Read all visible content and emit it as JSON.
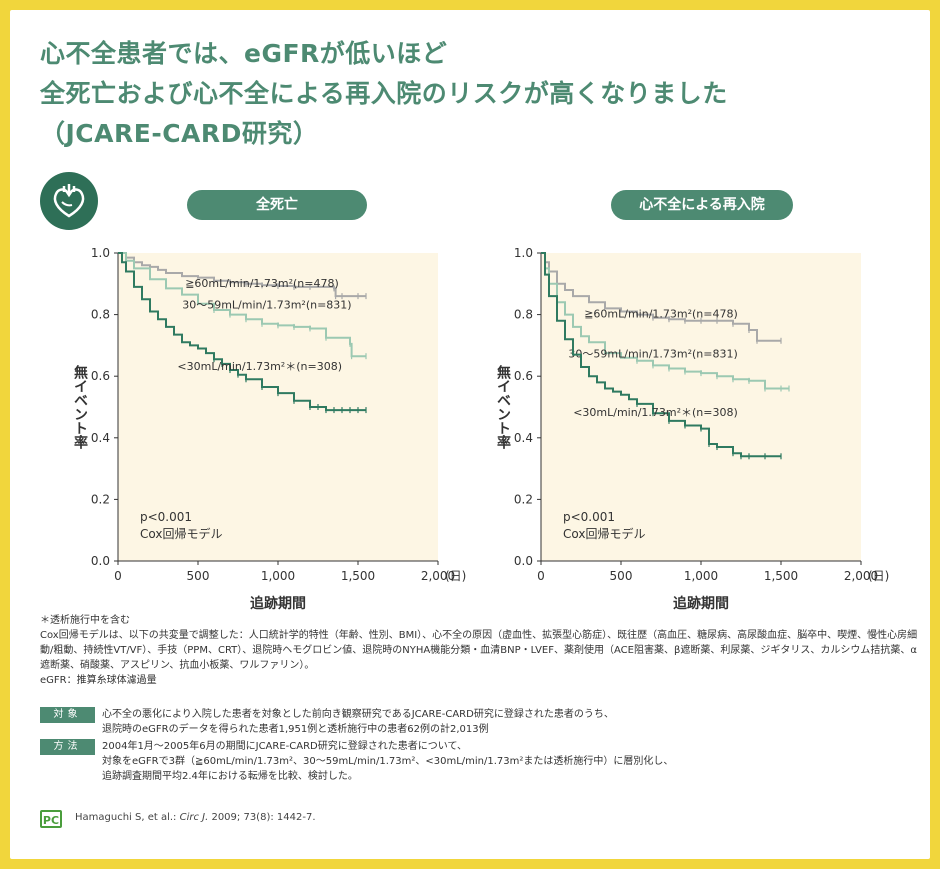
{
  "title": {
    "line1": "心不全患者では、eGFRが低いほど",
    "line2": "全死亡および心不全による再入院のリスクが高くなりました",
    "line3": "（JCARE-CARD研究）"
  },
  "chart_data": [
    {
      "type": "line",
      "title": "全死亡",
      "xlabel": "追跡期間",
      "x_unit": "(日)",
      "ylabel": "無イベント率",
      "xlim": [
        0,
        2000
      ],
      "ylim": [
        0,
        1.0
      ],
      "x_ticks": [
        "0",
        "500",
        "1,000",
        "1,500",
        "2,000"
      ],
      "y_ticks": [
        "0.0",
        "0.2",
        "0.4",
        "0.6",
        "0.8",
        "1.0"
      ],
      "annotation_lines": [
        "p<0.001",
        "Cox回帰モデル"
      ],
      "series": [
        {
          "name": "≧60mL/min/1.73m²(n=478)",
          "color": "#a9a9a9",
          "x": [
            0,
            50,
            100,
            150,
            200,
            250,
            300,
            400,
            500,
            600,
            700,
            800,
            900,
            1000,
            1100,
            1200,
            1350,
            1360,
            1400,
            1500,
            1550
          ],
          "y": [
            1.0,
            0.985,
            0.97,
            0.96,
            0.955,
            0.945,
            0.935,
            0.925,
            0.92,
            0.91,
            0.905,
            0.9,
            0.895,
            0.893,
            0.89,
            0.89,
            0.885,
            0.86,
            0.86,
            0.86,
            0.86
          ]
        },
        {
          "name": "30～59mL/min/1.73m²(n=831)",
          "color": "#9cc9b2",
          "x": [
            0,
            50,
            100,
            200,
            300,
            400,
            500,
            600,
            700,
            800,
            900,
            1000,
            1100,
            1200,
            1300,
            1450,
            1460,
            1550
          ],
          "y": [
            1.0,
            0.975,
            0.95,
            0.915,
            0.885,
            0.865,
            0.835,
            0.815,
            0.8,
            0.785,
            0.77,
            0.765,
            0.76,
            0.755,
            0.725,
            0.705,
            0.665,
            0.665
          ]
        },
        {
          "name": "<30mL/min/1.73m²＊(n=308)",
          "color": "#2f7a60",
          "x": [
            0,
            25,
            50,
            100,
            150,
            200,
            250,
            300,
            350,
            400,
            450,
            500,
            550,
            600,
            650,
            700,
            750,
            800,
            900,
            1000,
            1100,
            1200,
            1250,
            1300,
            1350,
            1400,
            1450,
            1500,
            1550
          ],
          "y": [
            1.0,
            0.97,
            0.94,
            0.89,
            0.85,
            0.81,
            0.785,
            0.76,
            0.735,
            0.71,
            0.7,
            0.69,
            0.675,
            0.655,
            0.64,
            0.62,
            0.605,
            0.59,
            0.565,
            0.545,
            0.52,
            0.5,
            0.5,
            0.49,
            0.49,
            0.49,
            0.49,
            0.49,
            0.49
          ]
        }
      ]
    },
    {
      "type": "line",
      "title": "心不全による再入院",
      "xlabel": "追跡期間",
      "x_unit": "(日)",
      "ylabel": "無イベント率",
      "xlim": [
        0,
        2000
      ],
      "ylim": [
        0,
        1.0
      ],
      "x_ticks": [
        "0",
        "500",
        "1,000",
        "1,500",
        "2,000"
      ],
      "y_ticks": [
        "0.0",
        "0.2",
        "0.4",
        "0.6",
        "0.8",
        "1.0"
      ],
      "annotation_lines": [
        "p<0.001",
        "Cox回帰モデル"
      ],
      "series": [
        {
          "name": "≧60mL/min/1.73m²(n=478)",
          "color": "#a9a9a9",
          "x": [
            0,
            25,
            50,
            100,
            150,
            200,
            300,
            400,
            500,
            600,
            700,
            800,
            900,
            1000,
            1100,
            1200,
            1300,
            1350,
            1500
          ],
          "y": [
            1.0,
            0.97,
            0.94,
            0.9,
            0.88,
            0.86,
            0.84,
            0.82,
            0.81,
            0.8,
            0.79,
            0.785,
            0.78,
            0.78,
            0.78,
            0.77,
            0.75,
            0.715,
            0.715
          ]
        },
        {
          "name": "30～59mL/min/1.73m²(n=831)",
          "color": "#9cc9b2",
          "x": [
            0,
            25,
            50,
            100,
            150,
            200,
            250,
            300,
            400,
            500,
            600,
            700,
            800,
            900,
            1000,
            1100,
            1200,
            1300,
            1400,
            1500,
            1550
          ],
          "y": [
            1.0,
            0.95,
            0.9,
            0.84,
            0.8,
            0.76,
            0.73,
            0.71,
            0.675,
            0.66,
            0.65,
            0.635,
            0.625,
            0.615,
            0.61,
            0.6,
            0.59,
            0.585,
            0.56,
            0.56,
            0.56
          ]
        },
        {
          "name": "<30mL/min/1.73m²＊(n=308)",
          "color": "#2f7a60",
          "x": [
            0,
            25,
            50,
            100,
            150,
            200,
            250,
            300,
            350,
            400,
            450,
            500,
            550,
            600,
            700,
            800,
            900,
            1000,
            1050,
            1100,
            1200,
            1250,
            1300,
            1400,
            1500
          ],
          "y": [
            1.0,
            0.93,
            0.86,
            0.78,
            0.72,
            0.67,
            0.63,
            0.6,
            0.58,
            0.56,
            0.55,
            0.54,
            0.525,
            0.51,
            0.48,
            0.455,
            0.44,
            0.43,
            0.38,
            0.37,
            0.35,
            0.34,
            0.34,
            0.34,
            0.34
          ]
        }
      ]
    }
  ],
  "pills": {
    "left": "全死亡",
    "right": "心不全による再入院"
  },
  "notes": {
    "line1": "＊透析施行中を含む",
    "line2": "Cox回帰モデルは、以下の共変量で調整した：人口統計学的特性（年齢、性別、BMI）、心不全の原因（虚血性、拡張型心筋症）、既往歴（高血圧、糖尿病、高尿酸血症、脳卒中、喫煙、慢性心房細動/粗動、持続性VT/VF）、手技（PPM、CRT）、退院時ヘモグロビン値、退院時のNYHA機能分類・血清BNP・LVEF、薬剤使用（ACE阻害薬、β遮断薬、利尿薬、ジギタリス、カルシウム拮抗薬、α遮断薬、硝酸薬、アスピリン、抗血小板薬、ワルファリン）。",
    "line3": "eGFR：推算糸球体濾過量"
  },
  "method": {
    "subject_tag": "対象",
    "subject_text1": "心不全の悪化により入院した患者を対象とした前向き観察研究であるJCARE-CARD研究に登録された患者のうち、",
    "subject_text2": "退院時のeGFRのデータを得られた患者1,951例と透析施行中の患者62例の計2,013例",
    "method_tag": "方法",
    "method_text1": "2004年1月～2005年6月の期間にJCARE-CARD研究に登録された患者について、",
    "method_text2": "対象をeGFRで3群（≧60mL/min/1.73m²、30～59mL/min/1.73m²、<30mL/min/1.73m²または透析施行中）に層別化し、",
    "method_text3": "追跡調査期間平均2.4年における転帰を比較、検討した。"
  },
  "reference": {
    "logo_text": "PC",
    "text_prefix": "Hamaguchi S, et al.: ",
    "journal": "Circ J.",
    "text_suffix": " 2009; 73(8): 1442-7."
  },
  "colors": {
    "frame": "#f1d63c",
    "accent": "#4d8a72",
    "plot_bg": "#fdf6e4"
  }
}
